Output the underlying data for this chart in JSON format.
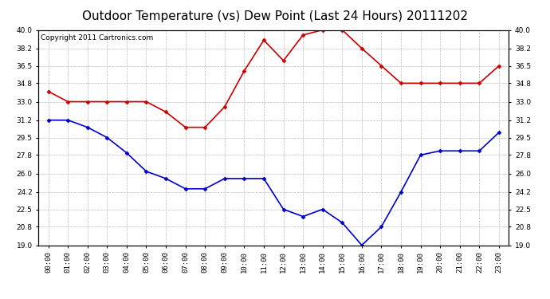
{
  "title": "Outdoor Temperature (vs) Dew Point (Last 24 Hours) 20111202",
  "copyright": "Copyright 2011 Cartronics.com",
  "hours": [
    "00:00",
    "01:00",
    "02:00",
    "03:00",
    "04:00",
    "05:00",
    "06:00",
    "07:00",
    "08:00",
    "09:00",
    "10:00",
    "11:00",
    "12:00",
    "13:00",
    "14:00",
    "15:00",
    "16:00",
    "17:00",
    "18:00",
    "19:00",
    "20:00",
    "21:00",
    "22:00",
    "23:00"
  ],
  "temp": [
    34.0,
    33.0,
    33.0,
    33.0,
    33.0,
    33.0,
    32.0,
    30.5,
    30.5,
    32.5,
    36.0,
    39.0,
    37.0,
    39.5,
    40.0,
    40.0,
    38.2,
    36.5,
    34.8,
    34.8,
    34.8,
    34.8,
    34.8,
    36.5
  ],
  "dew": [
    31.2,
    31.2,
    30.5,
    29.5,
    28.0,
    26.2,
    25.5,
    24.5,
    24.5,
    25.5,
    25.5,
    25.5,
    22.5,
    21.8,
    22.5,
    21.2,
    19.0,
    20.8,
    24.2,
    27.8,
    28.2,
    28.2,
    28.2,
    30.0
  ],
  "temp_color": "#cc0000",
  "dew_color": "#0000cc",
  "bg_color": "#ffffff",
  "plot_bg": "#ffffff",
  "grid_color": "#bbbbbb",
  "ylim_min": 19.0,
  "ylim_max": 40.0,
  "yticks": [
    19.0,
    20.8,
    22.5,
    24.2,
    26.0,
    27.8,
    29.5,
    31.2,
    33.0,
    34.8,
    36.5,
    38.2,
    40.0
  ],
  "title_fontsize": 11,
  "copyright_fontsize": 6.5,
  "tick_fontsize": 6.5,
  "line_width": 1.2,
  "marker": "D",
  "marker_size": 2.5
}
